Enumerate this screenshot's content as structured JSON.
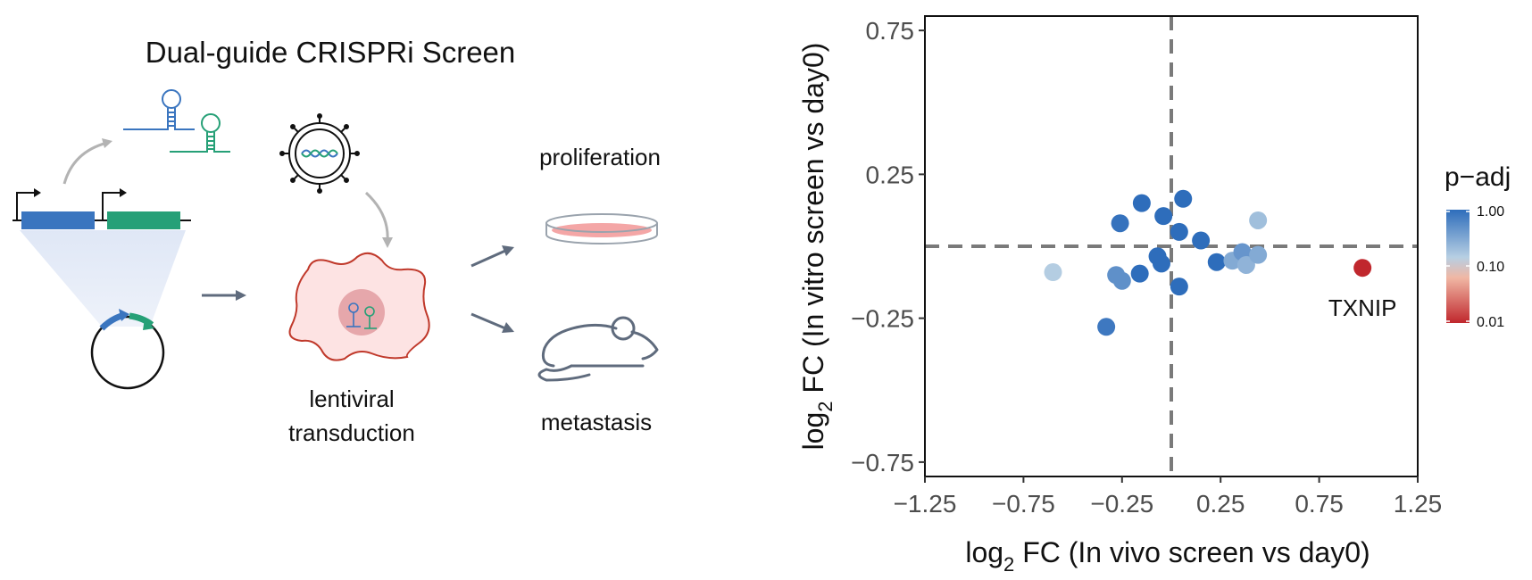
{
  "schematic": {
    "title": "Dual-guide CRISPRi Screen",
    "step_transduction_line1": "lentiviral",
    "step_transduction_line2": "transduction",
    "outcome_proliferation": "proliferation",
    "outcome_metastasis": "metastasis",
    "colors": {
      "guide_blue": "#3a75bf",
      "guide_green": "#26a077",
      "cell_fill": "#fde3e3",
      "cell_stroke": "#c0392b",
      "arrow_gray": "#5f6b7d",
      "dish_fill": "#f4a6a6",
      "mouse_stroke": "#5f6b7d"
    }
  },
  "chart_data": {
    "type": "scatter",
    "xlabel_prefix": "log",
    "xlabel_sub": "2",
    "xlabel_suffix": " FC (In vivo screen vs day0)",
    "ylabel_prefix": "log",
    "ylabel_sub": "2",
    "ylabel_suffix": " FC (In vitro screen vs day0)",
    "xlim": [
      -1.25,
      1.25
    ],
    "ylim": [
      -0.8,
      0.8
    ],
    "xticks": [
      -1.25,
      -0.75,
      -0.25,
      0.25,
      0.75,
      1.25
    ],
    "xtick_labels": [
      "−1.25",
      "−0.75",
      "−0.25",
      "0.25",
      "0.75",
      "1.25"
    ],
    "yticks": [
      -0.75,
      -0.25,
      0.25,
      0.75
    ],
    "ytick_labels": [
      "−0.75",
      "−0.25",
      "0.25",
      "0.75"
    ],
    "ref_lines": {
      "x": 0,
      "y": 0
    },
    "grid": false,
    "legend": {
      "title": "p−adj",
      "placement": "right",
      "labels": [
        "1.00",
        "0.10",
        "0.01"
      ],
      "colors": [
        "#2e6dbb",
        "#b7cfe3",
        "#f0b7a4",
        "#c0272d"
      ]
    },
    "points": [
      {
        "x": -0.15,
        "y": 0.15,
        "padj": 1.0
      },
      {
        "x": -0.04,
        "y": 0.105,
        "padj": 1.0
      },
      {
        "x": 0.06,
        "y": 0.165,
        "padj": 1.0
      },
      {
        "x": -0.26,
        "y": 0.08,
        "padj": 0.9
      },
      {
        "x": 0.04,
        "y": 0.05,
        "padj": 1.0
      },
      {
        "x": 0.15,
        "y": 0.02,
        "padj": 1.0
      },
      {
        "x": -0.07,
        "y": -0.035,
        "padj": 1.0
      },
      {
        "x": -0.05,
        "y": -0.06,
        "padj": 1.0
      },
      {
        "x": -0.16,
        "y": -0.095,
        "padj": 1.0
      },
      {
        "x": -0.28,
        "y": -0.1,
        "padj": 0.5
      },
      {
        "x": -0.25,
        "y": -0.12,
        "padj": 0.5
      },
      {
        "x": 0.04,
        "y": -0.14,
        "padj": 1.0
      },
      {
        "x": 0.23,
        "y": -0.055,
        "padj": 1.0
      },
      {
        "x": 0.31,
        "y": -0.05,
        "padj": 0.3
      },
      {
        "x": 0.36,
        "y": -0.02,
        "padj": 0.45
      },
      {
        "x": 0.38,
        "y": -0.065,
        "padj": 0.25
      },
      {
        "x": 0.44,
        "y": -0.03,
        "padj": 0.3
      },
      {
        "x": 0.44,
        "y": 0.09,
        "padj": 0.2
      },
      {
        "x": -0.6,
        "y": -0.09,
        "padj": 0.15
      },
      {
        "x": -0.33,
        "y": -0.28,
        "padj": 0.8
      },
      {
        "x": 0.97,
        "y": -0.075,
        "padj": 0.01,
        "label": "TXNIP"
      }
    ]
  }
}
